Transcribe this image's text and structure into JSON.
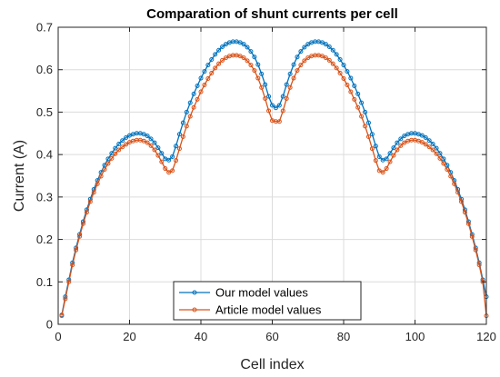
{
  "chart_data": {
    "type": "line",
    "title": "Comparation of shunt currents per cell",
    "xlabel": "Cell index",
    "ylabel": "Current (A)",
    "xlim": [
      0,
      120
    ],
    "ylim": [
      0,
      0.7
    ],
    "xticks": [
      0,
      20,
      40,
      60,
      80,
      100,
      120
    ],
    "yticks": [
      0,
      0.1,
      0.2,
      0.3,
      0.4,
      0.5,
      0.6,
      0.7
    ],
    "grid": true,
    "legend_position": "bottom-center",
    "series": [
      {
        "name": "Our model values",
        "color": "#0072BD",
        "marker": "circle",
        "x": [
          1,
          2,
          3,
          4,
          5,
          6,
          7,
          8,
          9,
          10,
          11,
          12,
          13,
          14,
          15,
          16,
          17,
          18,
          19,
          20,
          21,
          22,
          23,
          24,
          25,
          26,
          27,
          28,
          29,
          30,
          31,
          32,
          33,
          34,
          35,
          36,
          37,
          38,
          39,
          40,
          41,
          42,
          43,
          44,
          45,
          46,
          47,
          48,
          49,
          50,
          51,
          52,
          53,
          54,
          55,
          56,
          57,
          58,
          59,
          60,
          61,
          62,
          63,
          64,
          65,
          66,
          67,
          68,
          69,
          70,
          71,
          72,
          73,
          74,
          75,
          76,
          77,
          78,
          79,
          80,
          81,
          82,
          83,
          84,
          85,
          86,
          87,
          88,
          89,
          90,
          91,
          92,
          93,
          94,
          95,
          96,
          97,
          98,
          99,
          100,
          101,
          102,
          103,
          104,
          105,
          106,
          107,
          108,
          109,
          110,
          111,
          112,
          113,
          114,
          115,
          116,
          117,
          118,
          119,
          120
        ],
        "values": [
          0.022,
          0.065,
          0.105,
          0.145,
          0.18,
          0.212,
          0.242,
          0.27,
          0.295,
          0.318,
          0.339,
          0.358,
          0.375,
          0.39,
          0.403,
          0.415,
          0.425,
          0.433,
          0.44,
          0.445,
          0.448,
          0.45,
          0.45,
          0.448,
          0.444,
          0.437,
          0.428,
          0.416,
          0.403,
          0.39,
          0.387,
          0.395,
          0.42,
          0.448,
          0.475,
          0.5,
          0.522,
          0.543,
          0.562,
          0.58,
          0.596,
          0.611,
          0.624,
          0.636,
          0.646,
          0.654,
          0.66,
          0.664,
          0.666,
          0.666,
          0.664,
          0.66,
          0.653,
          0.643,
          0.63,
          0.612,
          0.59,
          0.565,
          0.537,
          0.516,
          0.51,
          0.516,
          0.537,
          0.565,
          0.59,
          0.612,
          0.63,
          0.643,
          0.653,
          0.66,
          0.664,
          0.666,
          0.666,
          0.664,
          0.66,
          0.654,
          0.646,
          0.636,
          0.624,
          0.611,
          0.596,
          0.58,
          0.562,
          0.543,
          0.522,
          0.5,
          0.475,
          0.448,
          0.42,
          0.395,
          0.387,
          0.39,
          0.403,
          0.416,
          0.428,
          0.437,
          0.444,
          0.448,
          0.45,
          0.45,
          0.448,
          0.445,
          0.44,
          0.433,
          0.425,
          0.415,
          0.403,
          0.39,
          0.375,
          0.358,
          0.339,
          0.318,
          0.295,
          0.27,
          0.242,
          0.212,
          0.18,
          0.145,
          0.105,
          0.065
        ]
      },
      {
        "name": "Article model values",
        "color": "#D95319",
        "marker": "circle",
        "x": [
          1,
          2,
          3,
          4,
          5,
          6,
          7,
          8,
          9,
          10,
          11,
          12,
          13,
          14,
          15,
          16,
          17,
          18,
          19,
          20,
          21,
          22,
          23,
          24,
          25,
          26,
          27,
          28,
          29,
          30,
          31,
          32,
          33,
          34,
          35,
          36,
          37,
          38,
          39,
          40,
          41,
          42,
          43,
          44,
          45,
          46,
          47,
          48,
          49,
          50,
          51,
          52,
          53,
          54,
          55,
          56,
          57,
          58,
          59,
          60,
          61,
          62,
          63,
          64,
          65,
          66,
          67,
          68,
          69,
          70,
          71,
          72,
          73,
          74,
          75,
          76,
          77,
          78,
          79,
          80,
          81,
          82,
          83,
          84,
          85,
          86,
          87,
          88,
          89,
          90,
          91,
          92,
          93,
          94,
          95,
          96,
          97,
          98,
          99,
          100,
          101,
          102,
          103,
          104,
          105,
          106,
          107,
          108,
          109,
          110,
          111,
          112,
          113,
          114,
          115,
          116,
          117,
          118,
          119,
          120
        ],
        "values": [
          0.02,
          0.06,
          0.1,
          0.14,
          0.175,
          0.207,
          0.237,
          0.264,
          0.289,
          0.311,
          0.331,
          0.349,
          0.365,
          0.379,
          0.391,
          0.402,
          0.411,
          0.418,
          0.424,
          0.429,
          0.432,
          0.434,
          0.434,
          0.432,
          0.428,
          0.421,
          0.411,
          0.398,
          0.383,
          0.367,
          0.358,
          0.362,
          0.386,
          0.414,
          0.442,
          0.467,
          0.49,
          0.511,
          0.53,
          0.548,
          0.564,
          0.579,
          0.592,
          0.604,
          0.614,
          0.622,
          0.628,
          0.632,
          0.634,
          0.634,
          0.632,
          0.628,
          0.621,
          0.611,
          0.598,
          0.58,
          0.558,
          0.532,
          0.503,
          0.48,
          0.478,
          0.478,
          0.503,
          0.532,
          0.558,
          0.58,
          0.598,
          0.611,
          0.621,
          0.628,
          0.632,
          0.634,
          0.634,
          0.632,
          0.628,
          0.622,
          0.614,
          0.604,
          0.592,
          0.579,
          0.564,
          0.548,
          0.53,
          0.511,
          0.49,
          0.467,
          0.442,
          0.414,
          0.386,
          0.362,
          0.358,
          0.367,
          0.383,
          0.398,
          0.411,
          0.421,
          0.428,
          0.432,
          0.434,
          0.434,
          0.432,
          0.429,
          0.424,
          0.418,
          0.411,
          0.402,
          0.391,
          0.379,
          0.365,
          0.349,
          0.331,
          0.311,
          0.289,
          0.264,
          0.237,
          0.207,
          0.175,
          0.14,
          0.1,
          0.02
        ]
      }
    ]
  }
}
